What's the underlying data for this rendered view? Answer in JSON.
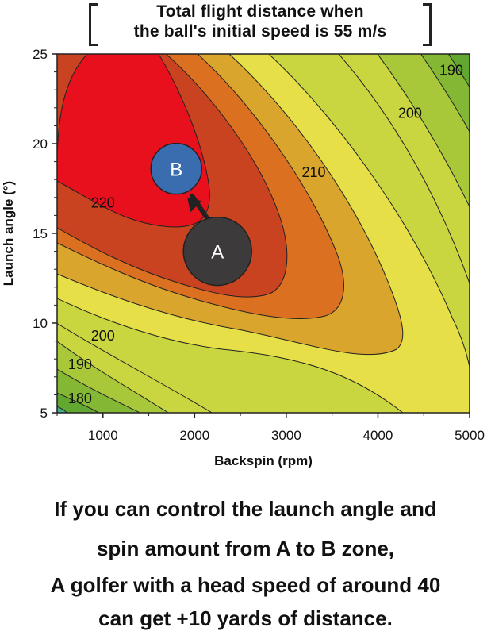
{
  "chart_data": {
    "type": "contour",
    "title_lines": [
      "Total flight distance when",
      "the ball's initial speed is 55 m/s"
    ],
    "xlabel": "Backspin (rpm)",
    "ylabel": "Launch angle (°)",
    "xlim": [
      500,
      5000
    ],
    "ylim": [
      5,
      25
    ],
    "xticks": [
      1000,
      2000,
      3000,
      4000,
      5000
    ],
    "yticks": [
      5,
      10,
      15,
      20,
      25
    ],
    "contour_labels": [
      {
        "text": "220",
        "x": 1000,
        "y": 16.7
      },
      {
        "text": "210",
        "x": 3300,
        "y": 18.4
      },
      {
        "text": "200",
        "x": 4350,
        "y": 21.7
      },
      {
        "text": "190",
        "x": 4800,
        "y": 24.1
      },
      {
        "text": "200",
        "x": 1000,
        "y": 9.3
      },
      {
        "text": "190",
        "x": 750,
        "y": 7.7
      },
      {
        "text": "180",
        "x": 750,
        "y": 5.8
      }
    ],
    "markers": [
      {
        "label": "A",
        "x": 2250,
        "y": 14.0,
        "color": "#3c3a3a"
      },
      {
        "label": "B",
        "x": 1800,
        "y": 18.6,
        "color": "#3a6cb0"
      }
    ],
    "arrow": {
      "from": [
        2130,
        15.9
      ],
      "to": [
        1920,
        17.0
      ]
    },
    "colors": {
      "fill_220": "#e8101c",
      "fill_215": "#c94320",
      "fill_210": "#db7020",
      "fill_205": "#d9a52c",
      "fill_200": "#e6df48",
      "fill_195": "#c9d640",
      "fill_190": "#a8c83a",
      "fill_185": "#84b834",
      "fill_180": "#62a830",
      "fill_corner": "#4cae8c"
    }
  },
  "caption_lines": [
    "If you can control the launch angle and",
    "spin amount from A to B zone,",
    "A golfer with a head speed of around 40",
    "can get +10 yards of distance."
  ]
}
